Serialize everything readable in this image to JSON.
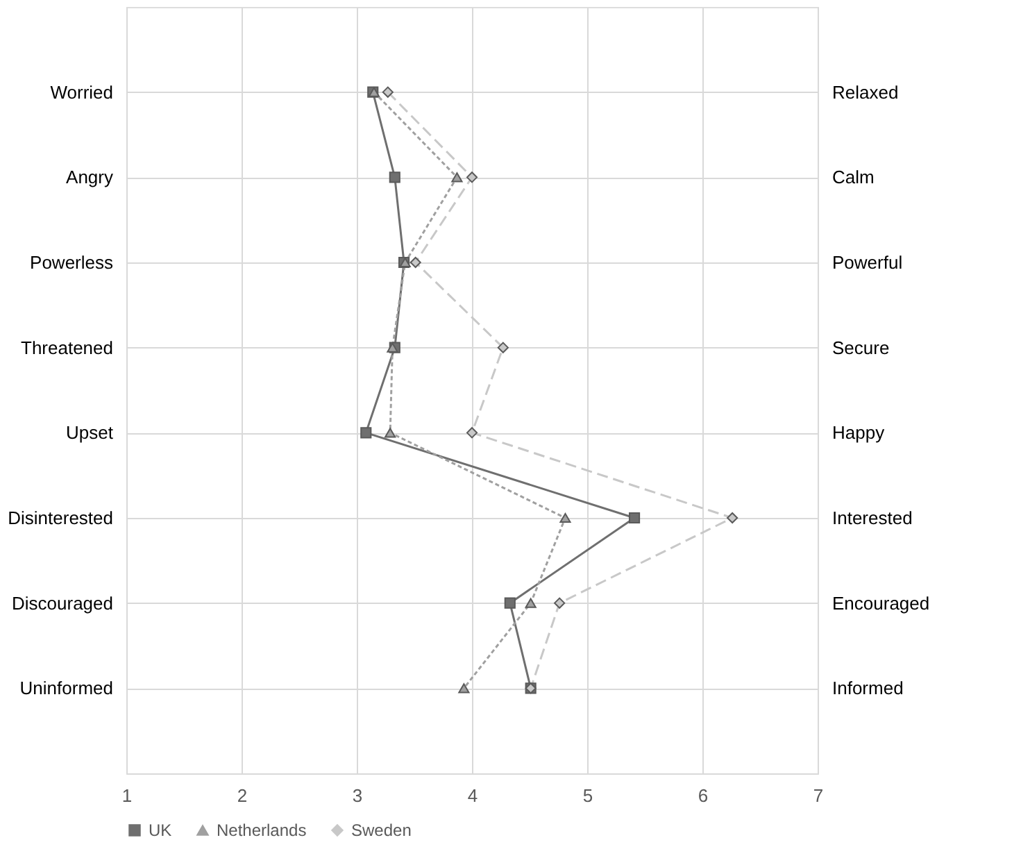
{
  "chart_data": {
    "type": "line",
    "orientation": "horizontal",
    "categories": [
      "Worried",
      "Angry",
      "Powerless",
      "Threatened",
      "Upset",
      "Disinterested",
      "Discouraged",
      "Uninformed"
    ],
    "y2_categories": [
      "Relaxed",
      "Calm",
      "Powerful",
      "Secure",
      "Happy",
      "Interested",
      "Encouraged",
      "Informed"
    ],
    "series": [
      {
        "name": "UK",
        "color": "#6f6f6f",
        "marker": "square",
        "line_style": "solid",
        "values": [
          3.14,
          3.33,
          3.41,
          3.33,
          3.08,
          5.41,
          4.33,
          4.51
        ]
      },
      {
        "name": "Netherlands",
        "color": "#a0a0a0",
        "marker": "triangle",
        "line_style": "dotted",
        "values": [
          3.15,
          3.87,
          3.42,
          3.31,
          3.29,
          4.81,
          4.51,
          3.93
        ]
      },
      {
        "name": "Sweden",
        "color": "#c8c8c8",
        "marker": "diamond",
        "line_style": "dashed",
        "values": [
          3.27,
          4.0,
          3.51,
          4.27,
          4.0,
          6.26,
          4.76,
          4.51
        ]
      }
    ],
    "xlim": [
      1,
      7
    ],
    "xticks": [
      1,
      2,
      3,
      4,
      5,
      6,
      7
    ],
    "grid": true,
    "legend": "bottom"
  }
}
